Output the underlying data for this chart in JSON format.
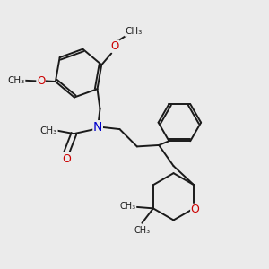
{
  "bg_color": "#ebebeb",
  "bond_color": "#1a1a1a",
  "N_color": "#0000cc",
  "O_color": "#cc0000",
  "line_width": 1.4,
  "font_size": 8.5,
  "fig_size": [
    3.0,
    3.0
  ],
  "dpi": 100,
  "xlim": [
    0,
    10
  ],
  "ylim": [
    0,
    10
  ]
}
